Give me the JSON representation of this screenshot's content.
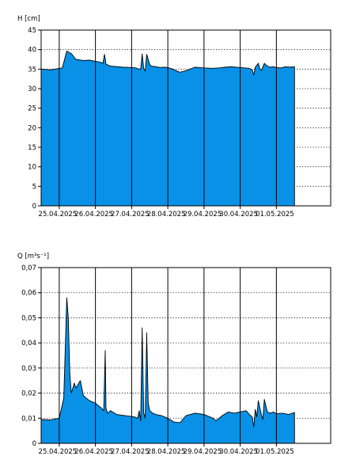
{
  "chart_data": [
    {
      "type": "area",
      "ylabel": "H [cm]",
      "ylim": [
        0,
        45
      ],
      "yticks": [
        0,
        5,
        10,
        15,
        20,
        25,
        30,
        35,
        40,
        45
      ],
      "ytick_labels": [
        "0",
        "5",
        "10",
        "15",
        "20",
        "25",
        "30",
        "35",
        "40",
        "45"
      ],
      "xlim": [
        "2025-04-24T12:00",
        "2025-05-02T12:00"
      ],
      "xtick_labels": [
        "25.04.2025",
        "26.04.2025",
        "27.04.2025",
        "28.04.2025",
        "29.04.2025",
        "30.04.2025",
        "01.05.2025"
      ],
      "xtick_positions": [
        "2025-04-25T00:00",
        "2025-04-26T00:00",
        "2025-04-27T00:00",
        "2025-04-28T00:00",
        "2025-04-29T00:00",
        "2025-04-30T00:00",
        "2025-05-01T00:00"
      ],
      "grid": true,
      "fill_color": "#0891e6",
      "x": [
        "2025-04-24T12:00",
        "2025-04-24T18:00",
        "2025-04-25T02:00",
        "2025-04-25T05:00",
        "2025-04-25T08:00",
        "2025-04-25T11:00",
        "2025-04-25T16:00",
        "2025-04-25T20:00",
        "2025-04-26T00:00",
        "2025-04-26T03:00",
        "2025-04-26T05:00",
        "2025-04-26T06:00",
        "2025-04-26T07:00",
        "2025-04-26T08:30",
        "2025-04-26T10:00",
        "2025-04-26T18:00",
        "2025-04-27T00:00",
        "2025-04-27T03:00",
        "2025-04-27T04:00",
        "2025-04-27T06:00",
        "2025-04-27T07:00",
        "2025-04-27T08:00",
        "2025-04-27T09:00",
        "2025-04-27T10:00",
        "2025-04-27T12:00",
        "2025-04-27T13:00",
        "2025-04-27T16:00",
        "2025-04-27T19:00",
        "2025-04-27T22:00",
        "2025-04-28T02:00",
        "2025-04-28T08:00",
        "2025-04-28T12:00",
        "2025-04-28T18:00",
        "2025-04-29T00:00",
        "2025-04-29T06:00",
        "2025-04-29T10:00",
        "2025-04-29T14:00",
        "2025-04-29T18:00",
        "2025-04-30T00:00",
        "2025-04-30T06:00",
        "2025-04-30T08:00",
        "2025-04-30T09:00",
        "2025-04-30T10:00",
        "2025-04-30T12:00",
        "2025-04-30T13:00",
        "2025-04-30T14:00",
        "2025-04-30T16:00",
        "2025-04-30T17:00",
        "2025-04-30T18:00",
        "2025-04-30T20:00",
        "2025-04-30T22:00",
        "2025-05-01T00:00",
        "2025-05-01T03:00",
        "2025-05-01T06:00",
        "2025-05-01T09:00",
        "2025-05-01T12:00"
      ],
      "series": [
        {
          "values": [
            35.0,
            34.8,
            35.3,
            39.6,
            39.0,
            37.5,
            37.2,
            37.3,
            37.0,
            36.8,
            36.5,
            38.8,
            36.3,
            36.0,
            35.8,
            35.5,
            35.4,
            35.3,
            35.1,
            35.0,
            38.9,
            35.2,
            34.5,
            38.8,
            36.2,
            35.8,
            35.6,
            35.4,
            35.5,
            35.2,
            34.2,
            34.6,
            35.5,
            35.3,
            35.2,
            35.3,
            35.5,
            35.6,
            35.4,
            35.2,
            34.8,
            33.5,
            35.5,
            36.5,
            35.2,
            34.6,
            36.5,
            36.1,
            35.8,
            35.5,
            35.6,
            35.4,
            35.3,
            35.6,
            35.5,
            35.6
          ]
        }
      ]
    },
    {
      "type": "area",
      "ylabel": "Q [m³s⁻¹]",
      "ylim": [
        0,
        0.07
      ],
      "yticks": [
        0,
        0.01,
        0.02,
        0.03,
        0.04,
        0.05,
        0.06,
        0.07
      ],
      "ytick_labels": [
        "0",
        "0,01",
        "0,02",
        "0,03",
        "0,04",
        "0,05",
        "0,06",
        "0,07"
      ],
      "xlim": [
        "2025-04-24T12:00",
        "2025-05-02T12:00"
      ],
      "xtick_labels": [
        "25.04.2025",
        "26.04.2025",
        "27.04.2025",
        "28.04.2025",
        "29.04.2025",
        "30.04.2025",
        "01.05.2025"
      ],
      "xtick_positions": [
        "2025-04-25T00:00",
        "2025-04-26T00:00",
        "2025-04-27T00:00",
        "2025-04-28T00:00",
        "2025-04-29T00:00",
        "2025-04-30T00:00",
        "2025-05-01T00:00"
      ],
      "grid": true,
      "fill_color": "#0891e6",
      "x": [
        "2025-04-24T12:00",
        "2025-04-24T18:00",
        "2025-04-25T00:00",
        "2025-04-25T03:00",
        "2025-04-25T05:00",
        "2025-04-25T06:00",
        "2025-04-25T07:00",
        "2025-04-25T08:00",
        "2025-04-25T10:00",
        "2025-04-25T11:00",
        "2025-04-25T14:00",
        "2025-04-25T16:00",
        "2025-04-25T18:00",
        "2025-04-25T20:00",
        "2025-04-26T00:00",
        "2025-04-26T02:00",
        "2025-04-26T04:00",
        "2025-04-26T05:30",
        "2025-04-26T06:30",
        "2025-04-26T07:00",
        "2025-04-26T08:00",
        "2025-04-26T10:00",
        "2025-04-26T14:00",
        "2025-04-26T20:00",
        "2025-04-27T02:00",
        "2025-04-27T04:00",
        "2025-04-27T05:00",
        "2025-04-27T06:00",
        "2025-04-27T07:00",
        "2025-04-27T08:00",
        "2025-04-27T09:00",
        "2025-04-27T10:00",
        "2025-04-27T11:00",
        "2025-04-27T12:00",
        "2025-04-27T14:00",
        "2025-04-27T16:00",
        "2025-04-27T20:00",
        "2025-04-28T00:00",
        "2025-04-28T04:00",
        "2025-04-28T08:00",
        "2025-04-28T12:00",
        "2025-04-28T18:00",
        "2025-04-29T00:00",
        "2025-04-29T06:00",
        "2025-04-29T08:00",
        "2025-04-29T12:00",
        "2025-04-29T16:00",
        "2025-04-29T20:00",
        "2025-04-30T00:00",
        "2025-04-30T04:00",
        "2025-04-30T06:00",
        "2025-04-30T08:00",
        "2025-04-30T09:00",
        "2025-04-30T10:00",
        "2025-04-30T11:00",
        "2025-04-30T12:00",
        "2025-04-30T14:00",
        "2025-04-30T15:00",
        "2025-04-30T16:00",
        "2025-04-30T18:00",
        "2025-04-30T20:00",
        "2025-04-30T22:00",
        "2025-05-01T00:00",
        "2025-05-01T04:00",
        "2025-05-01T08:00",
        "2025-05-01T12:00"
      ],
      "series": [
        {
          "values": [
            0.0095,
            0.0093,
            0.01,
            0.018,
            0.058,
            0.05,
            0.028,
            0.02,
            0.024,
            0.022,
            0.025,
            0.019,
            0.018,
            0.017,
            0.016,
            0.015,
            0.014,
            0.013,
            0.037,
            0.014,
            0.012,
            0.013,
            0.0115,
            0.011,
            0.0105,
            0.01,
            0.013,
            0.009,
            0.046,
            0.012,
            0.01,
            0.044,
            0.016,
            0.013,
            0.012,
            0.0115,
            0.011,
            0.01,
            0.0085,
            0.0082,
            0.011,
            0.012,
            0.0115,
            0.01,
            0.009,
            0.011,
            0.0125,
            0.012,
            0.0125,
            0.013,
            0.0115,
            0.0105,
            0.0065,
            0.0135,
            0.0105,
            0.017,
            0.0115,
            0.0095,
            0.0175,
            0.0125,
            0.012,
            0.0125,
            0.0118,
            0.012,
            0.0115,
            0.0123
          ]
        }
      ]
    }
  ]
}
